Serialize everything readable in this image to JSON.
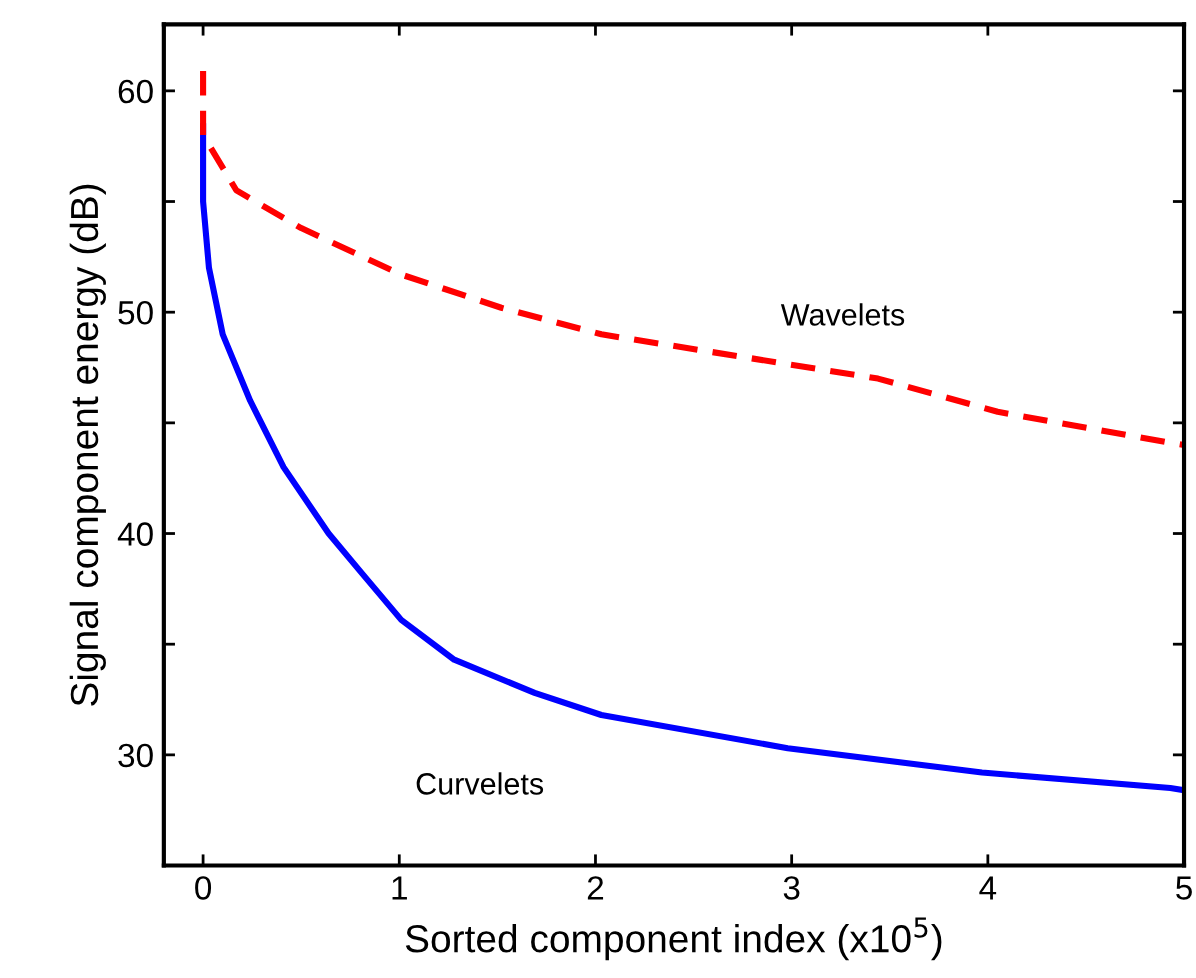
{
  "chart_data": {
    "type": "line",
    "xlabel": "Sorted component index (x10$^{5}$)",
    "ylabel": "Signal component energy (dB)",
    "xlim": [
      -0.2,
      5
    ],
    "ylim": [
      25,
      63
    ],
    "xticks": [
      0,
      1,
      2,
      3,
      4,
      5
    ],
    "yticks": [
      30,
      {
        "value": 35,
        "label": null
      },
      40,
      {
        "value": 45,
        "label": null
      },
      50,
      {
        "value": 55,
        "label": null
      },
      60
    ],
    "grid": false,
    "legend": false,
    "marker": "none",
    "series": [
      {
        "name": "Curvelets",
        "color": "#0000ff",
        "line_style": "solid",
        "x": [
          0,
          0,
          0.03,
          0.1,
          0.24,
          0.41,
          0.64,
          0.81,
          1.01,
          1.28,
          1.69,
          2.03,
          2.98,
          3.97,
          4.93,
          5
        ],
        "values": [
          58.4,
          55.0,
          52.0,
          49.0,
          46.0,
          43.0,
          40.0,
          38.2,
          36.1,
          34.3,
          32.8,
          31.8,
          30.3,
          29.2,
          28.5,
          28.4
        ]
      },
      {
        "name": "Wavelets",
        "color": "#ff0000",
        "line_style": "dashed",
        "x": [
          0,
          0,
          0.17,
          0.5,
          1.01,
          1.52,
          2.03,
          3.44,
          4.05,
          4.93,
          5
        ],
        "values": [
          60.9,
          58.0,
          55.5,
          53.8,
          51.7,
          50.2,
          49.0,
          47.0,
          45.5,
          44.1,
          44.0
        ]
      }
    ]
  }
}
